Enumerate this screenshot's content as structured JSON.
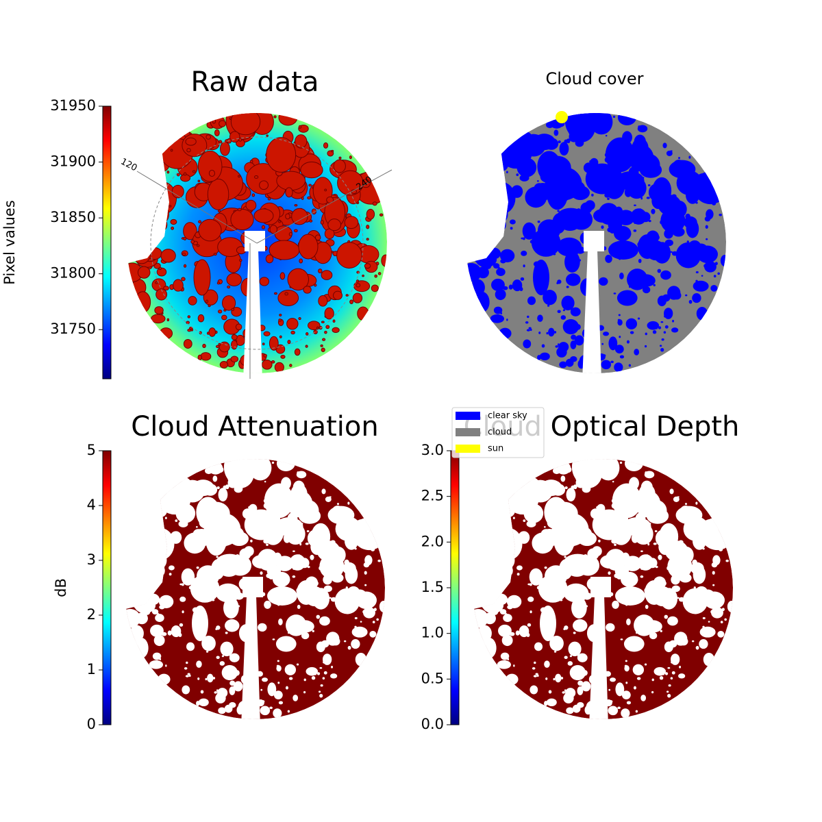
{
  "chart_data": [
    {
      "type": "image",
      "title": "Raw data",
      "colormap": "jet",
      "ylabel": "Pixel values",
      "ylim": [
        31706,
        31950
      ],
      "yticks": [
        31750,
        31800,
        31850,
        31900,
        31950
      ],
      "annotations": [
        "120",
        "240"
      ]
    },
    {
      "type": "image",
      "title": "Cloud cover",
      "series": [
        {
          "name": "clear sky",
          "color": "#0000ff"
        },
        {
          "name": "cloud",
          "color": "#808080"
        },
        {
          "name": "sun",
          "color": "#ffff00"
        }
      ],
      "legend": "lower right"
    },
    {
      "type": "image",
      "title": "Cloud Attenuation",
      "colormap": "jet",
      "ylabel": "dB",
      "ylim": [
        0,
        5
      ],
      "yticks": [
        0,
        1,
        2,
        3,
        4,
        5
      ]
    },
    {
      "type": "image",
      "title": "Cloud Optical Depth",
      "colormap": "jet",
      "ylim": [
        0,
        3
      ],
      "yticks": [
        {
          "value": 0,
          "label": "0.0"
        },
        0.5,
        {
          "value": 1,
          "label": "1.0"
        },
        1.5,
        {
          "value": 2,
          "label": "2.0"
        },
        2.5,
        {
          "value": 3,
          "label": "3.0"
        }
      ]
    }
  ]
}
